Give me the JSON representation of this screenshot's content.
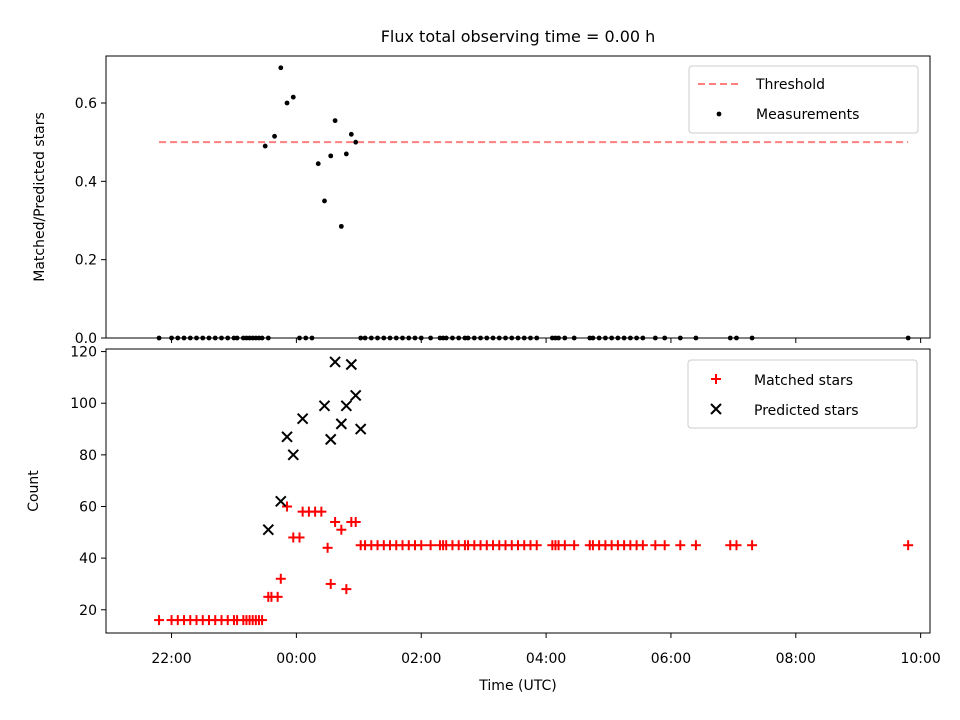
{
  "figure": {
    "title": "Flux total observing time = 0.00 h",
    "xlabel": "Time (UTC)",
    "xtick_labels": [
      "22:00",
      "00:00",
      "02:00",
      "04:00",
      "06:00",
      "08:00",
      "10:00"
    ]
  },
  "chart_data": [
    {
      "type": "scatter",
      "ylabel": "Matched/Predicted stars",
      "ylim": [
        0,
        0.72
      ],
      "xlim_hours": [
        -3.05,
        10.15
      ],
      "yticks": [
        0.0,
        0.2,
        0.4,
        0.6
      ],
      "ytick_labels": [
        "0.0",
        "0.2",
        "0.4",
        "0.6"
      ],
      "legend_position": "top-right",
      "grid": false,
      "threshold": {
        "name": "Threshold",
        "value": 0.5,
        "x_range_hours": [
          -2.2,
          9.8
        ],
        "color": "#ff7f7f",
        "style": "dashed"
      },
      "series": [
        {
          "name": "Measurements",
          "color": "#000000",
          "marker": "dot",
          "x_hours": [
            -2.2,
            -2.0,
            -1.9,
            -1.8,
            -1.7,
            -1.6,
            -1.5,
            -1.4,
            -1.3,
            -1.2,
            -1.1,
            -1.0,
            -0.95,
            -0.85,
            -0.8,
            -0.75,
            -0.7,
            -0.65,
            -0.6,
            -0.55,
            -0.5,
            -0.45,
            -0.35,
            -0.25,
            -0.15,
            -0.05,
            0.05,
            0.15,
            0.25,
            0.35,
            0.45,
            0.55,
            0.62,
            0.72,
            0.8,
            0.88,
            0.95,
            1.03,
            1.1,
            1.2,
            1.3,
            1.4,
            1.5,
            1.6,
            1.7,
            1.8,
            1.9,
            2.0,
            2.15,
            2.3,
            2.35,
            2.4,
            2.5,
            2.6,
            2.7,
            2.75,
            2.85,
            2.95,
            3.05,
            3.15,
            3.25,
            3.35,
            3.45,
            3.55,
            3.65,
            3.75,
            3.85,
            4.1,
            4.15,
            4.2,
            4.3,
            4.45,
            4.7,
            4.75,
            4.85,
            4.95,
            5.05,
            5.15,
            5.25,
            5.35,
            5.45,
            5.55,
            5.75,
            5.9,
            6.15,
            6.4,
            6.95,
            7.05,
            7.3,
            9.8
          ],
          "y": [
            0,
            0,
            0,
            0,
            0,
            0,
            0,
            0,
            0,
            0,
            0,
            0,
            0,
            0,
            0,
            0,
            0,
            0,
            0,
            0,
            0.49,
            0,
            0.515,
            0.69,
            0.6,
            0.615,
            0,
            0,
            0,
            0.445,
            0.35,
            0.465,
            0.555,
            0.285,
            0.47,
            0.52,
            0.5,
            0,
            0,
            0,
            0,
            0,
            0,
            0,
            0,
            0,
            0,
            0,
            0,
            0,
            0,
            0,
            0,
            0,
            0,
            0,
            0,
            0,
            0,
            0,
            0,
            0,
            0,
            0,
            0,
            0,
            0,
            0,
            0,
            0,
            0,
            0,
            0,
            0,
            0,
            0,
            0,
            0,
            0,
            0,
            0,
            0,
            0,
            0,
            0,
            0,
            0,
            0,
            0,
            0
          ]
        }
      ]
    },
    {
      "type": "scatter",
      "ylabel": "Count",
      "ylim": [
        11,
        121
      ],
      "xlim_hours": [
        -3.05,
        10.15
      ],
      "yticks": [
        20,
        40,
        60,
        80,
        100,
        120
      ],
      "ytick_labels": [
        "20",
        "40",
        "60",
        "80",
        "100",
        "120"
      ],
      "legend_position": "top-right",
      "grid": false,
      "series": [
        {
          "name": "Matched stars",
          "color": "#ff0000",
          "marker": "plus",
          "x_hours": [
            -2.2,
            -2.0,
            -1.9,
            -1.8,
            -1.7,
            -1.6,
            -1.5,
            -1.4,
            -1.3,
            -1.2,
            -1.1,
            -1.0,
            -0.95,
            -0.85,
            -0.8,
            -0.75,
            -0.7,
            -0.65,
            -0.6,
            -0.55,
            -0.45,
            -0.4,
            -0.3,
            -0.25,
            -0.15,
            -0.05,
            0.05,
            0.1,
            0.2,
            0.3,
            0.4,
            0.5,
            0.55,
            0.62,
            0.72,
            0.8,
            0.88,
            0.95,
            1.03,
            1.1,
            1.2,
            1.3,
            1.4,
            1.5,
            1.6,
            1.7,
            1.8,
            1.9,
            2.0,
            2.15,
            2.3,
            2.35,
            2.4,
            2.5,
            2.6,
            2.7,
            2.75,
            2.85,
            2.95,
            3.05,
            3.15,
            3.25,
            3.35,
            3.45,
            3.55,
            3.65,
            3.75,
            3.85,
            4.1,
            4.15,
            4.2,
            4.3,
            4.45,
            4.7,
            4.75,
            4.85,
            4.95,
            5.05,
            5.15,
            5.25,
            5.35,
            5.45,
            5.55,
            5.75,
            5.9,
            6.15,
            6.4,
            6.95,
            7.05,
            7.3,
            9.8
          ],
          "y": [
            16,
            16,
            16,
            16,
            16,
            16,
            16,
            16,
            16,
            16,
            16,
            16,
            16,
            16,
            16,
            16,
            16,
            16,
            16,
            16,
            25,
            25,
            25,
            32,
            60,
            48,
            48,
            58,
            58,
            58,
            58,
            44,
            30,
            54,
            51,
            28,
            54,
            54,
            45,
            45,
            45,
            45,
            45,
            45,
            45,
            45,
            45,
            45,
            45,
            45,
            45,
            45,
            45,
            45,
            45,
            45,
            45,
            45,
            45,
            45,
            45,
            45,
            45,
            45,
            45,
            45,
            45,
            45,
            45,
            45,
            45,
            45,
            45,
            45,
            45,
            45,
            45,
            45,
            45,
            45,
            45,
            45,
            45,
            45,
            45,
            45,
            45,
            45,
            45,
            45,
            45
          ]
        },
        {
          "name": "Predicted stars",
          "color": "#000000",
          "marker": "cross",
          "x_hours": [
            -0.45,
            -0.25,
            -0.15,
            -0.05,
            0.1,
            0.45,
            0.55,
            0.62,
            0.72,
            0.8,
            0.88,
            0.95,
            1.03
          ],
          "y": [
            51,
            62,
            87,
            80,
            94,
            99,
            86,
            116,
            92,
            99,
            115,
            103,
            90
          ]
        }
      ]
    }
  ]
}
